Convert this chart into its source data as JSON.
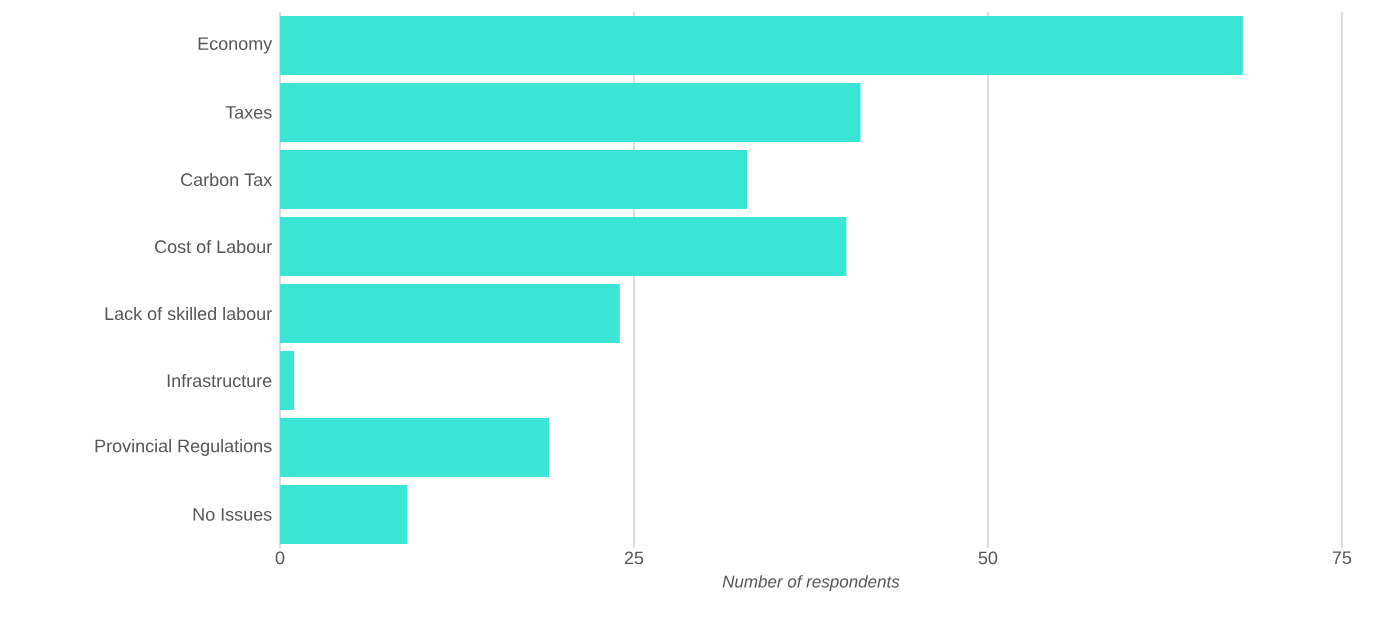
{
  "chart_data": {
    "type": "bar",
    "orientation": "horizontal",
    "xlabel": "Number of respondents",
    "categories": [
      "Economy",
      "Taxes",
      "Carbon Tax",
      "Cost of Labour",
      "Lack of skilled labour",
      "Infrastructure",
      "Provincial Regulations",
      "No Issues"
    ],
    "values": [
      68,
      41,
      33,
      40,
      24,
      1,
      19,
      9
    ],
    "color": "#3ae5d6",
    "xlim": [
      0,
      75
    ],
    "xticks": [
      0,
      25,
      50,
      75
    ],
    "grid": "x"
  }
}
